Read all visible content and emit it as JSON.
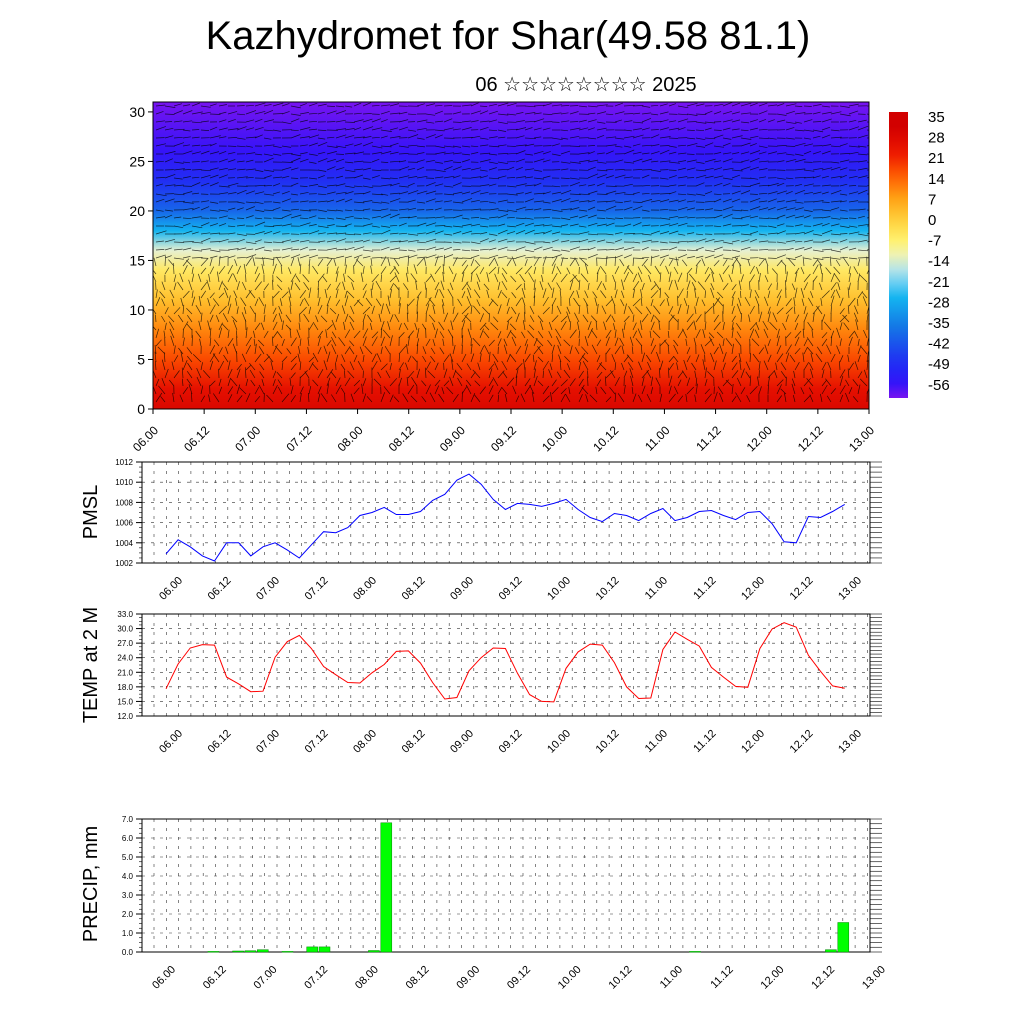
{
  "title": "Kazhydromet for Shar(49.58 81.1)",
  "subtitle": "06 ☆☆☆☆☆☆☆☆ 2025",
  "colors": {
    "pmsl_line": "#0000ff",
    "temp_line": "#ff0000",
    "precip_bar": "#00ff00",
    "precip_bar_edge": "#008800",
    "vector": "#000000"
  },
  "chart_data": [
    {
      "id": "wind-temperature-cross-section",
      "type": "heatmap",
      "xlabel": "",
      "ylabel": "",
      "x_ticklabels": [
        "06.00",
        "06.12",
        "07.00",
        "07.12",
        "08.00",
        "08.12",
        "09.00",
        "09.12",
        "10.00",
        "10.12",
        "11.00",
        "11.12",
        "12.00",
        "12.12",
        "13.00"
      ],
      "y_ticks": [
        0,
        5,
        10,
        15,
        20,
        25,
        30
      ],
      "ylim": [
        0,
        31
      ],
      "colorbar_labels": [
        "35",
        "28",
        "21",
        "14",
        "7",
        "0",
        "-7",
        "-14",
        "-21",
        "-28",
        "-35",
        "-42",
        "-49",
        "-56"
      ],
      "temperature_by_level": [
        {
          "level": 0,
          "temp": 32
        },
        {
          "level": 2,
          "temp": 28
        },
        {
          "level": 5,
          "temp": 20
        },
        {
          "level": 8,
          "temp": 13
        },
        {
          "level": 11,
          "temp": 5
        },
        {
          "level": 14,
          "temp": -3
        },
        {
          "level": 16,
          "temp": -12
        },
        {
          "level": 18,
          "temp": -25
        },
        {
          "level": 20,
          "temp": -38
        },
        {
          "level": 23,
          "temp": -48
        },
        {
          "level": 26,
          "temp": -55
        },
        {
          "level": 31,
          "temp": -60
        }
      ],
      "has_wind_vectors": true
    },
    {
      "id": "pmsl",
      "type": "line",
      "ylabel": "PMSL",
      "ylim": [
        1002,
        1012
      ],
      "y_ticks": [
        "1002",
        "1004",
        "1006",
        "1008",
        "1010",
        "1012"
      ],
      "x_ticklabels": [
        "06.00",
        "06.12",
        "07.00",
        "07.12",
        "08.00",
        "08.12",
        "09.00",
        "09.12",
        "10.00",
        "10.12",
        "11.00",
        "11.12",
        "12.00",
        "12.12",
        "13.00"
      ],
      "series": [
        {
          "values": [
            1002.9,
            1004.3,
            1003.6,
            1002.7,
            1002.2,
            1004.0,
            1004.0,
            1002.7,
            1003.6,
            1004.0,
            1003.3,
            1002.5,
            1003.8,
            1005.1,
            1005.0,
            1005.5,
            1006.7,
            1007.0,
            1007.5,
            1006.8,
            1006.8,
            1007.1,
            1008.2,
            1008.8,
            1010.2,
            1010.8,
            1009.8,
            1008.3,
            1007.3,
            1007.9,
            1007.8,
            1007.6,
            1007.9,
            1008.3,
            1007.3,
            1006.5,
            1006.1,
            1006.9,
            1006.7,
            1006.2,
            1006.9,
            1007.4,
            1006.2,
            1006.5,
            1007.1,
            1007.2,
            1006.7,
            1006.3,
            1007.0,
            1007.1,
            1005.9,
            1004.1,
            1004.0,
            1006.6,
            1006.5,
            1007.1,
            1007.8
          ]
        }
      ]
    },
    {
      "id": "temperature-2m",
      "type": "line",
      "ylabel": "TEMP at 2 M",
      "ylim": [
        12,
        33
      ],
      "y_ticks": [
        "12.0",
        "15.0",
        "18.0",
        "21.0",
        "24.0",
        "27.0",
        "30.0",
        "33.0"
      ],
      "x_ticklabels": [
        "06.00",
        "06.12",
        "07.00",
        "07.12",
        "08.00",
        "08.12",
        "09.00",
        "09.12",
        "10.00",
        "10.12",
        "11.00",
        "11.12",
        "12.00",
        "12.12",
        "13.00"
      ],
      "series": [
        {
          "values": [
            17.6,
            22.7,
            26.0,
            26.7,
            26.6,
            20.0,
            18.6,
            17.0,
            17.1,
            24.1,
            27.3,
            28.6,
            25.9,
            22.2,
            20.5,
            18.9,
            18.8,
            20.9,
            22.6,
            25.3,
            25.4,
            22.9,
            18.9,
            15.5,
            15.8,
            21.3,
            24.0,
            26.0,
            25.9,
            20.8,
            16.4,
            15.0,
            14.9,
            21.8,
            25.2,
            26.8,
            26.6,
            23.0,
            18.0,
            15.6,
            15.7,
            25.7,
            29.3,
            27.8,
            26.4,
            22.0,
            20.0,
            18.1,
            17.9,
            25.9,
            29.9,
            31.2,
            30.3,
            24.5,
            21.2,
            18.2,
            17.7
          ]
        }
      ]
    },
    {
      "id": "precipitation",
      "type": "bar",
      "ylabel": "PRECIP, mm",
      "ylim": [
        0,
        7
      ],
      "y_ticks": [
        "0.0",
        "1.0",
        "2.0",
        "3.0",
        "4.0",
        "5.0",
        "6.0",
        "7.0"
      ],
      "x_ticklabels": [
        "06.00",
        "06.12",
        "07.00",
        "07.12",
        "08.00",
        "08.12",
        "09.00",
        "09.12",
        "10.00",
        "10.12",
        "11.00",
        "11.12",
        "12.00",
        "12.12",
        "13.00"
      ],
      "bars": [
        {
          "x_index": 4,
          "value": 0.03
        },
        {
          "x_index": 6,
          "value": 0.05
        },
        {
          "x_index": 7,
          "value": 0.07
        },
        {
          "x_index": 8,
          "value": 0.12
        },
        {
          "x_index": 10,
          "value": 0.03
        },
        {
          "x_index": 12,
          "value": 0.27
        },
        {
          "x_index": 13,
          "value": 0.27
        },
        {
          "x_index": 17,
          "value": 0.08
        },
        {
          "x_index": 18,
          "value": 6.8
        },
        {
          "x_index": 43,
          "value": 0.03
        },
        {
          "x_index": 54,
          "value": 0.12
        },
        {
          "x_index": 55,
          "value": 1.55
        }
      ]
    }
  ]
}
